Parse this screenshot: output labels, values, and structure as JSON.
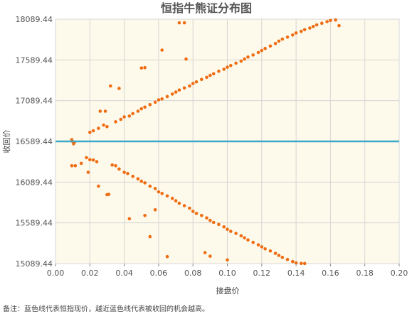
{
  "chart_data": {
    "type": "scatter",
    "title": "恒指牛熊证分布图",
    "xlabel": "接盘价",
    "ylabel": "收回价",
    "xlim": [
      0,
      0.2
    ],
    "ylim": [
      15089.44,
      18089.44
    ],
    "x_ticks": [
      "0.00",
      "0.02",
      "0.04",
      "0.06",
      "0.08",
      "0.10",
      "0.12",
      "0.14",
      "0.16",
      "0.18",
      "0.20"
    ],
    "y_ticks": [
      "15089.44",
      "15589.44",
      "16089.44",
      "16589.44",
      "17089.44",
      "17589.44",
      "18089.44"
    ],
    "grid": true,
    "reference_line": {
      "value": 16589.44,
      "color": "#3aa8c8"
    },
    "series": [
      {
        "color": "#ef6c12",
        "points": [
          [
            0.0095,
            16610
          ],
          [
            0.0105,
            16560
          ],
          [
            0.0098,
            16590
          ],
          [
            0.011,
            16580
          ],
          [
            0.0095,
            16290
          ],
          [
            0.0115,
            16290
          ],
          [
            0.015,
            16320
          ],
          [
            0.018,
            16390
          ],
          [
            0.02,
            16365
          ],
          [
            0.022,
            16360
          ],
          [
            0.024,
            16340
          ],
          [
            0.019,
            16210
          ],
          [
            0.025,
            16040
          ],
          [
            0.03,
            15935
          ],
          [
            0.031,
            15940
          ],
          [
            0.033,
            16300
          ],
          [
            0.035,
            16290
          ],
          [
            0.037,
            16250
          ],
          [
            0.04,
            16210
          ],
          [
            0.042,
            16195
          ],
          [
            0.045,
            16160
          ],
          [
            0.048,
            16130
          ],
          [
            0.05,
            16100
          ],
          [
            0.052,
            16080
          ],
          [
            0.055,
            16040
          ],
          [
            0.058,
            16010
          ],
          [
            0.06,
            15970
          ],
          [
            0.062,
            15950
          ],
          [
            0.065,
            15920
          ],
          [
            0.068,
            15890
          ],
          [
            0.07,
            15860
          ],
          [
            0.072,
            15830
          ],
          [
            0.075,
            15800
          ],
          [
            0.078,
            15770
          ],
          [
            0.08,
            15730
          ],
          [
            0.082,
            15705
          ],
          [
            0.085,
            15680
          ],
          [
            0.088,
            15650
          ],
          [
            0.09,
            15620
          ],
          [
            0.092,
            15595
          ],
          [
            0.095,
            15570
          ],
          [
            0.098,
            15540
          ],
          [
            0.1,
            15510
          ],
          [
            0.102,
            15485
          ],
          [
            0.105,
            15460
          ],
          [
            0.108,
            15430
          ],
          [
            0.11,
            15405
          ],
          [
            0.112,
            15380
          ],
          [
            0.115,
            15350
          ],
          [
            0.118,
            15320
          ],
          [
            0.12,
            15295
          ],
          [
            0.122,
            15270
          ],
          [
            0.125,
            15245
          ],
          [
            0.128,
            15215
          ],
          [
            0.13,
            15190
          ],
          [
            0.132,
            15165
          ],
          [
            0.135,
            15140
          ],
          [
            0.138,
            15115
          ],
          [
            0.14,
            15098
          ],
          [
            0.143,
            15092
          ],
          [
            0.145,
            15090
          ],
          [
            0.043,
            15640
          ],
          [
            0.052,
            15680
          ],
          [
            0.055,
            15420
          ],
          [
            0.058,
            15750
          ],
          [
            0.065,
            15175
          ],
          [
            0.087,
            15225
          ],
          [
            0.09,
            15180
          ],
          [
            0.1,
            15135
          ],
          [
            0.02,
            16700
          ],
          [
            0.022,
            16720
          ],
          [
            0.025,
            16750
          ],
          [
            0.028,
            16790
          ],
          [
            0.03,
            16770
          ],
          [
            0.035,
            16830
          ],
          [
            0.038,
            16860
          ],
          [
            0.04,
            16890
          ],
          [
            0.043,
            16900
          ],
          [
            0.045,
            16930
          ],
          [
            0.048,
            16960
          ],
          [
            0.05,
            16990
          ],
          [
            0.052,
            17010
          ],
          [
            0.055,
            17040
          ],
          [
            0.058,
            17070
          ],
          [
            0.06,
            17100
          ],
          [
            0.062,
            17110
          ],
          [
            0.065,
            17140
          ],
          [
            0.068,
            17170
          ],
          [
            0.07,
            17195
          ],
          [
            0.072,
            17220
          ],
          [
            0.075,
            17245
          ],
          [
            0.078,
            17270
          ],
          [
            0.08,
            17300
          ],
          [
            0.082,
            17320
          ],
          [
            0.085,
            17350
          ],
          [
            0.088,
            17375
          ],
          [
            0.09,
            17400
          ],
          [
            0.092,
            17420
          ],
          [
            0.095,
            17450
          ],
          [
            0.098,
            17475
          ],
          [
            0.1,
            17500
          ],
          [
            0.102,
            17520
          ],
          [
            0.105,
            17550
          ],
          [
            0.108,
            17575
          ],
          [
            0.11,
            17600
          ],
          [
            0.112,
            17625
          ],
          [
            0.115,
            17650
          ],
          [
            0.118,
            17680
          ],
          [
            0.12,
            17705
          ],
          [
            0.122,
            17730
          ],
          [
            0.125,
            17760
          ],
          [
            0.128,
            17790
          ],
          [
            0.13,
            17820
          ],
          [
            0.132,
            17845
          ],
          [
            0.135,
            17870
          ],
          [
            0.138,
            17895
          ],
          [
            0.14,
            17920
          ],
          [
            0.143,
            17940
          ],
          [
            0.145,
            17960
          ],
          [
            0.148,
            17980
          ],
          [
            0.15,
            18000
          ],
          [
            0.152,
            18020
          ],
          [
            0.155,
            18040
          ],
          [
            0.158,
            18060
          ],
          [
            0.16,
            18075
          ],
          [
            0.163,
            18080
          ],
          [
            0.165,
            18010
          ],
          [
            0.026,
            16960
          ],
          [
            0.029,
            16960
          ],
          [
            0.032,
            17270
          ],
          [
            0.037,
            17240
          ],
          [
            0.05,
            17490
          ],
          [
            0.052,
            17495
          ],
          [
            0.062,
            17710
          ],
          [
            0.072,
            18045
          ],
          [
            0.075,
            18045
          ],
          [
            0.076,
            17600
          ]
        ]
      }
    ]
  },
  "footnote": "备注：蓝色线代表恒指现价，越近蓝色线代表被收回的机会越高。"
}
